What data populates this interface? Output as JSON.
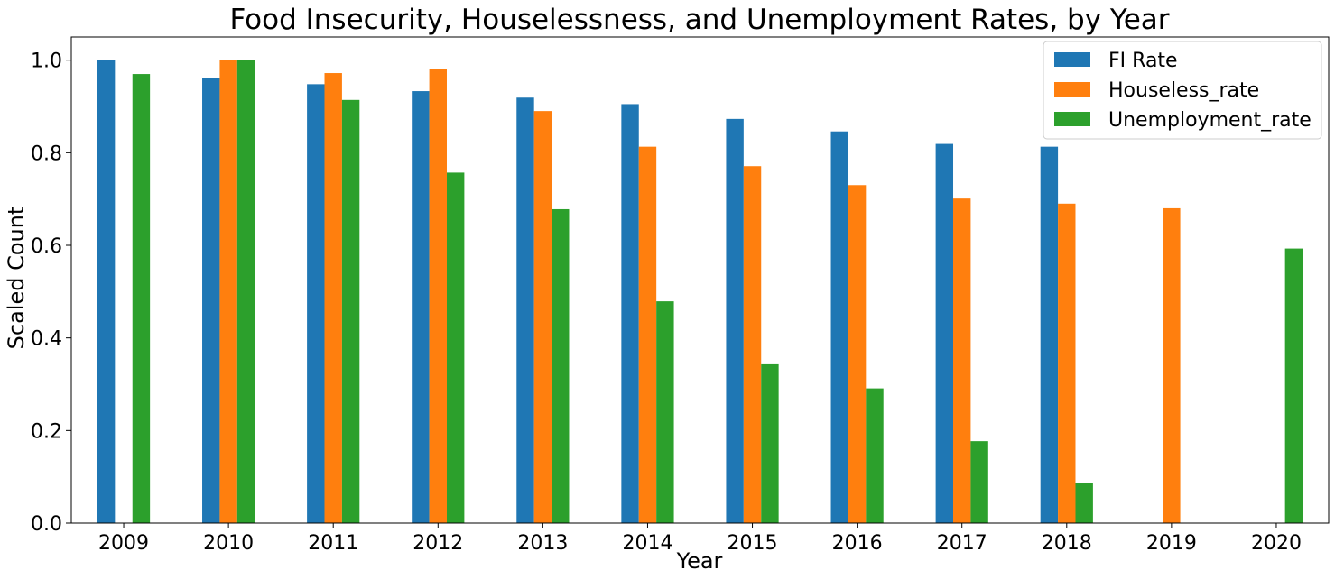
{
  "chart_data": {
    "type": "bar",
    "title": "Food Insecurity, Houselessness, and Unemployment Rates, by Year",
    "xlabel": "Year",
    "ylabel": "Scaled Count",
    "ylim": [
      0,
      1.05
    ],
    "yticks": [
      "0.0",
      "0.2",
      "0.4",
      "0.6",
      "0.8",
      "1.0"
    ],
    "ytick_values": [
      0,
      0.2,
      0.4,
      0.6,
      0.8,
      1.0
    ],
    "legend_position": "top-right",
    "grid": false,
    "categories": [
      "2009",
      "2010",
      "2011",
      "2012",
      "2013",
      "2014",
      "2015",
      "2016",
      "2017",
      "2018",
      "2019",
      "2020"
    ],
    "series": [
      {
        "name": "FI Rate",
        "color": "#1f77b4",
        "values": [
          1.0,
          0.962,
          0.948,
          0.933,
          0.919,
          0.905,
          0.873,
          0.846,
          0.819,
          0.813,
          0,
          0
        ]
      },
      {
        "name": "Houseless_rate",
        "color": "#ff7f0e",
        "values": [
          0,
          1.0,
          0.972,
          0.981,
          0.89,
          0.813,
          0.771,
          0.73,
          0.701,
          0.69,
          0.68,
          0
        ]
      },
      {
        "name": "Unemployment_rate",
        "color": "#2ca02c",
        "values": [
          0.97,
          1.0,
          0.914,
          0.757,
          0.678,
          0.479,
          0.343,
          0.291,
          0.177,
          0.086,
          0,
          0.593
        ]
      }
    ]
  }
}
